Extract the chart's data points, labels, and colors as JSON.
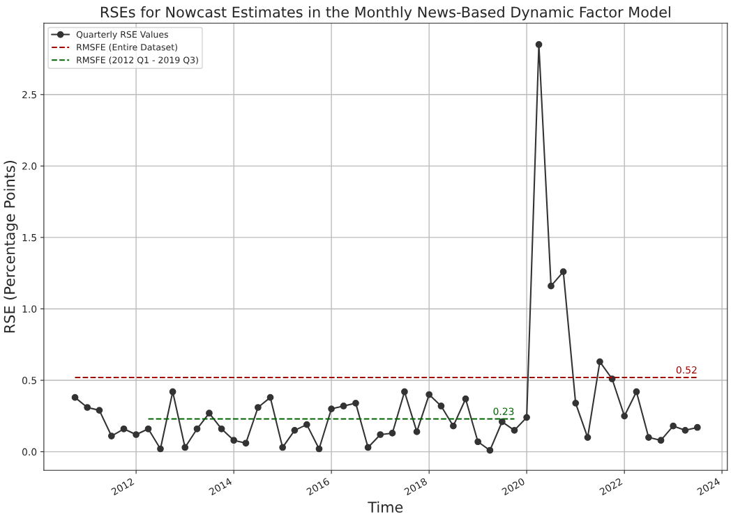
{
  "chart_data": {
    "type": "line",
    "title": "RSEs for Nowcast Estimates in the Monthly News-Based Dynamic Factor Model",
    "xlabel": "Time",
    "ylabel": "RSE (Percentage Points)",
    "series": [
      {
        "name": "Quarterly RSE Values",
        "color": "#333333",
        "marker": "circle",
        "line_style": "solid",
        "x": [
          "2010-10",
          "2011-01",
          "2011-04",
          "2011-07",
          "2011-10",
          "2012-01",
          "2012-04",
          "2012-07",
          "2012-10",
          "2013-01",
          "2013-04",
          "2013-07",
          "2013-10",
          "2014-01",
          "2014-04",
          "2014-07",
          "2014-10",
          "2015-01",
          "2015-04",
          "2015-07",
          "2015-10",
          "2016-01",
          "2016-04",
          "2016-07",
          "2016-10",
          "2017-01",
          "2017-04",
          "2017-07",
          "2017-10",
          "2018-01",
          "2018-04",
          "2018-07",
          "2018-10",
          "2019-01",
          "2019-04",
          "2019-07",
          "2019-10",
          "2020-01",
          "2020-04",
          "2020-07",
          "2020-10",
          "2021-01",
          "2021-04",
          "2021-07",
          "2021-10",
          "2022-01",
          "2022-04",
          "2022-07",
          "2022-10",
          "2023-01",
          "2023-04",
          "2023-07"
        ],
        "values": [
          0.38,
          0.31,
          0.29,
          0.11,
          0.16,
          0.12,
          0.16,
          0.02,
          0.42,
          0.03,
          0.16,
          0.27,
          0.16,
          0.08,
          0.06,
          0.31,
          0.38,
          0.03,
          0.15,
          0.19,
          0.02,
          0.3,
          0.32,
          0.34,
          0.03,
          0.12,
          0.13,
          0.42,
          0.14,
          0.4,
          0.32,
          0.18,
          0.37,
          0.07,
          0.01,
          0.21,
          0.15,
          0.24,
          2.85,
          1.16,
          1.26,
          0.34,
          0.1,
          0.63,
          0.51,
          0.25,
          0.42,
          0.1,
          0.08,
          0.18,
          0.15,
          0.17
        ]
      },
      {
        "name": "RMSFE (Entire Dataset)",
        "color": "#a00000",
        "marker": "none",
        "line_style": "dashed",
        "x": [
          "2010-10",
          "2023-07"
        ],
        "values": [
          0.52,
          0.52
        ]
      },
      {
        "name": "RMSFE (2012 Q1 - 2019 Q3)",
        "color": "#006400",
        "marker": "none",
        "line_style": "dashed",
        "x": [
          "2012-04",
          "2019-10"
        ],
        "values": [
          0.23,
          0.23
        ]
      }
    ],
    "annotations": [
      {
        "text": "0.52",
        "x": "2023-07",
        "y": 0.52
      },
      {
        "text": "0.23",
        "x": "2019-10",
        "y": 0.23
      }
    ],
    "xlim": [
      "2010-02-10",
      "2024-02-10"
    ],
    "xticks": [
      "2012",
      "2014",
      "2016",
      "2018",
      "2020",
      "2022",
      "2024"
    ],
    "ylim": [
      -0.13,
      3.0
    ],
    "yticks": [
      {
        "value": 0,
        "label": "0.0"
      },
      0.5,
      {
        "value": 1,
        "label": "1.0"
      },
      1.5,
      {
        "value": 2,
        "label": "2.0"
      },
      2.5
    ],
    "grid": true,
    "legend": "top left"
  }
}
